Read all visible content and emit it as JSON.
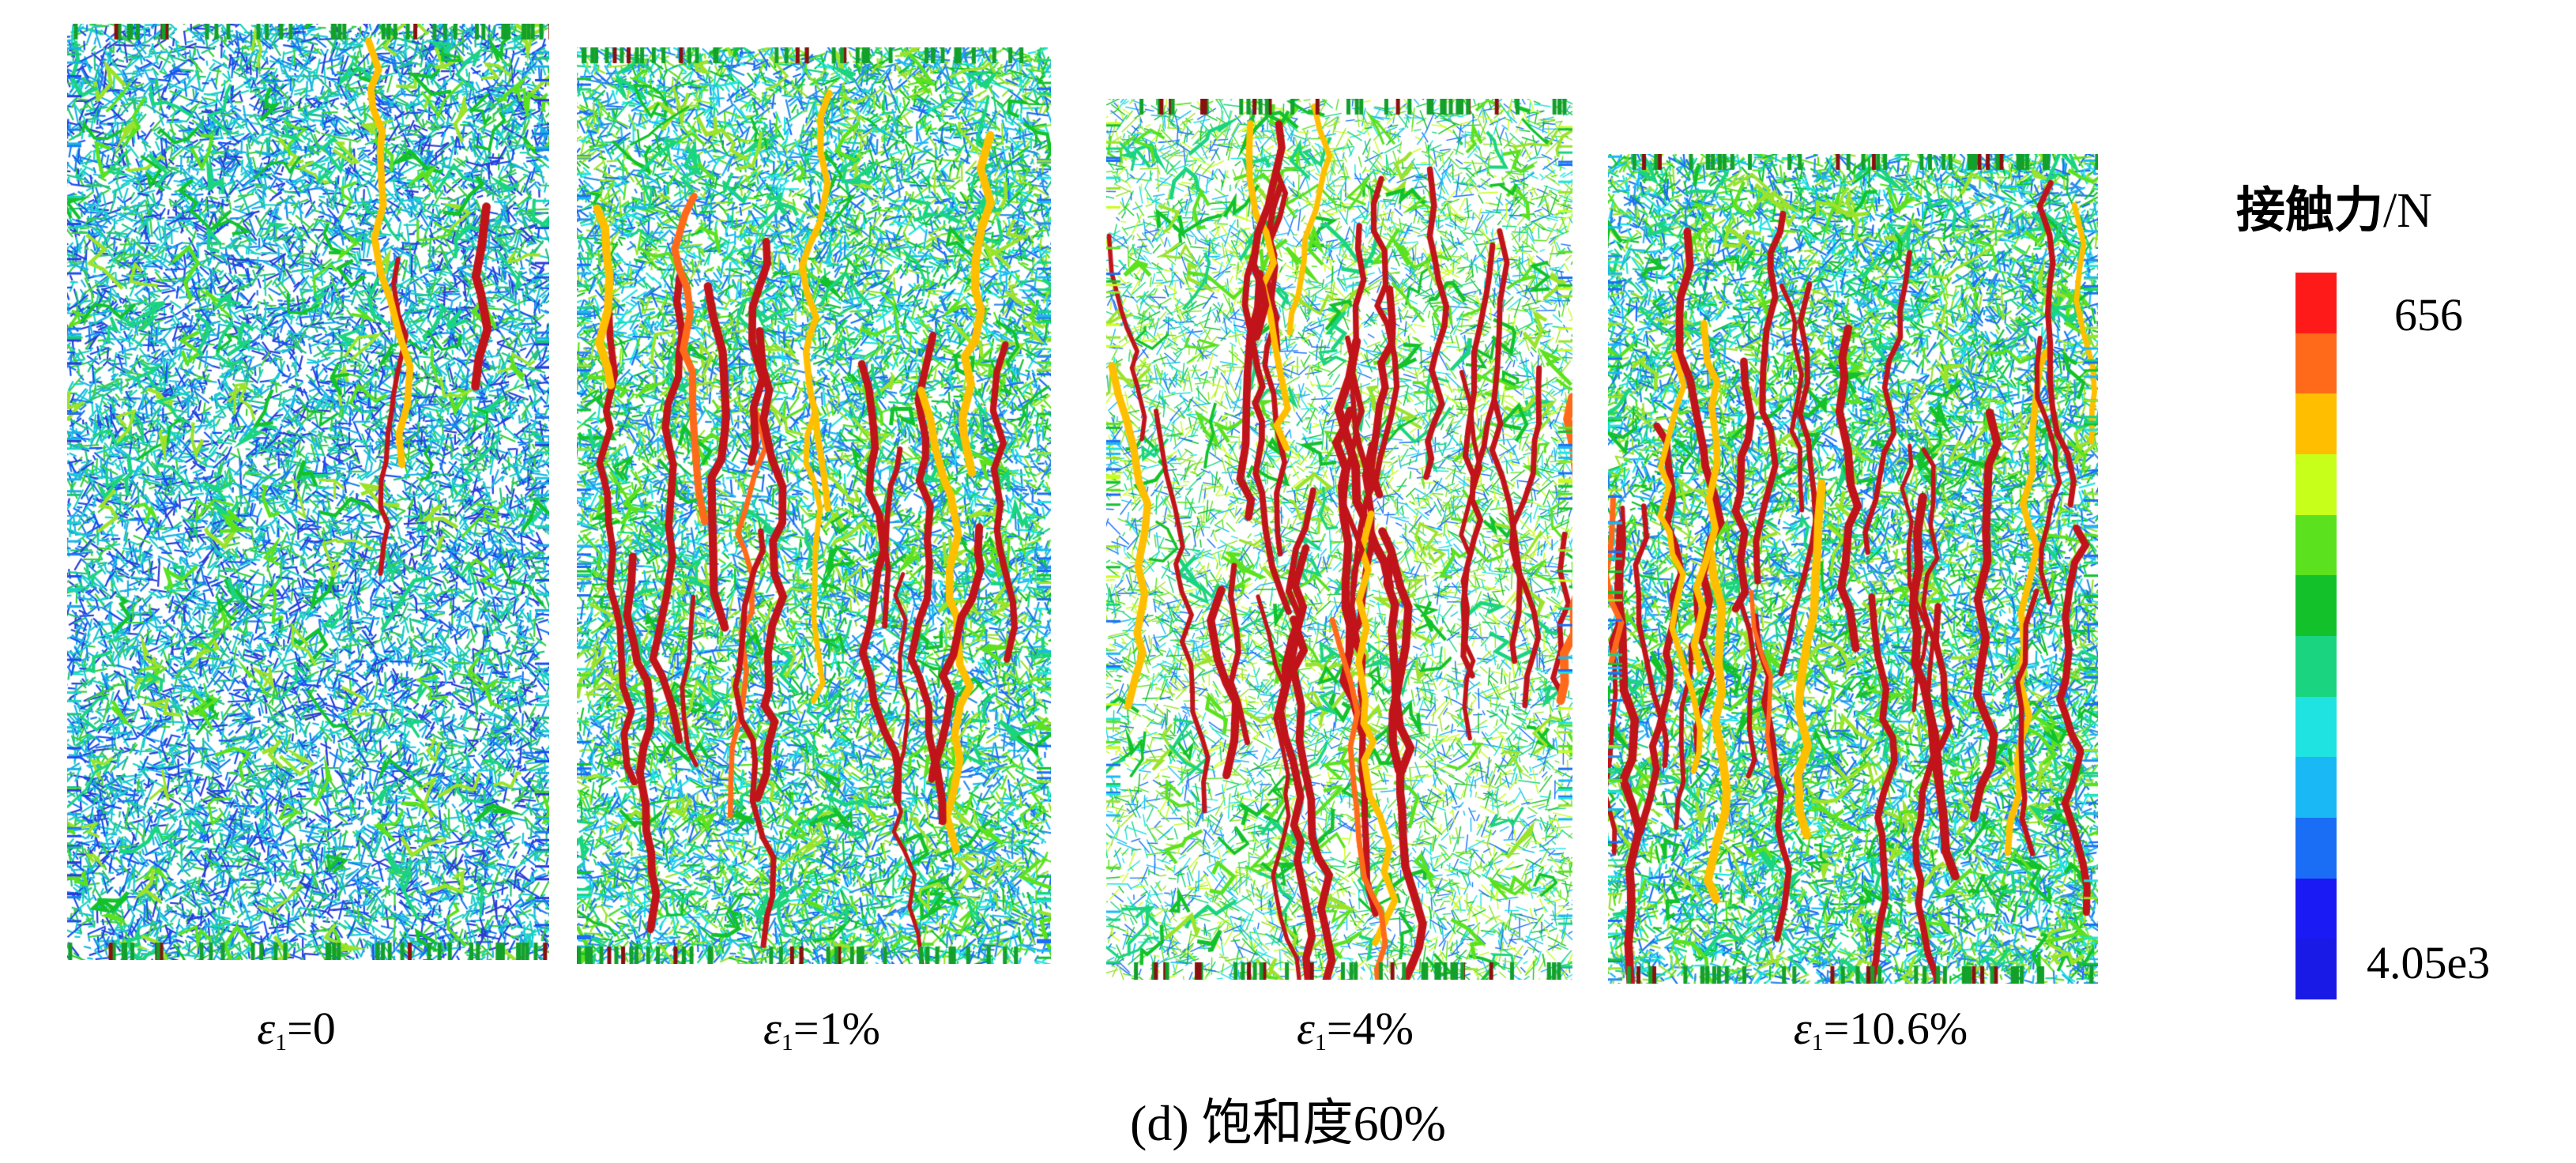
{
  "legend": {
    "title_cn": "接触力",
    "title_unit": "/N",
    "max_label": "656",
    "min_label": "4.05e3",
    "colors": [
      "#ff1a1a",
      "#ff6a1a",
      "#ffbf00",
      "#c8ff1a",
      "#5be11e",
      "#13c22b",
      "#1ad480",
      "#1ee3e0",
      "#1ab8f5",
      "#1a6ef5",
      "#1a1af5",
      "#1a1ae6"
    ]
  },
  "panels": [
    {
      "strain_symbol": "ε",
      "strain_subscript": "1",
      "strain_value": "=0",
      "chain_density": 0.05,
      "base_palette": "blue"
    },
    {
      "strain_symbol": "ε",
      "strain_subscript": "1",
      "strain_value": "=1%",
      "chain_density": 0.35,
      "base_palette": "mixed"
    },
    {
      "strain_symbol": "ε",
      "strain_subscript": "1",
      "strain_value": "=4%",
      "chain_density": 0.6,
      "base_palette": "light"
    },
    {
      "strain_symbol": "ε",
      "strain_subscript": "1",
      "strain_value": "=10.6%",
      "chain_density": 0.55,
      "base_palette": "mixed"
    }
  ],
  "caption": "(d) 饱和度60%"
}
